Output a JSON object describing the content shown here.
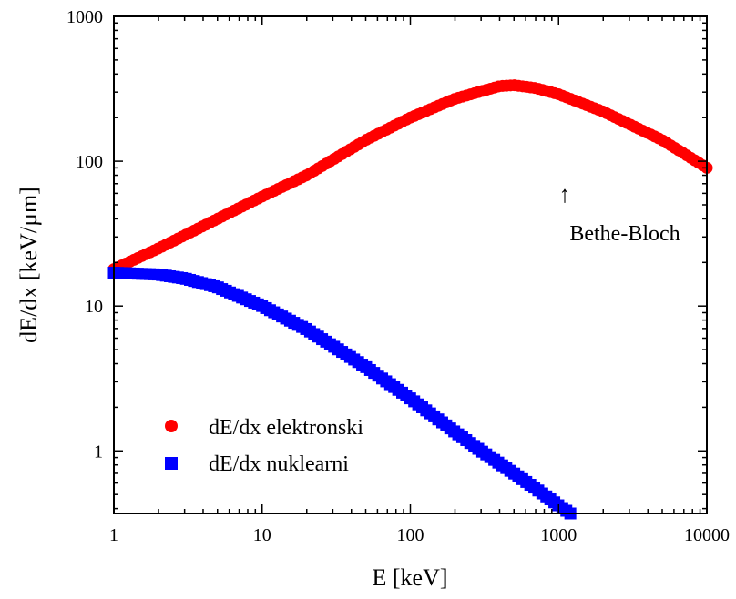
{
  "chart_data": {
    "type": "scatter",
    "xscale": "log",
    "yscale": "log",
    "xlim": [
      1,
      10000
    ],
    "ylim": [
      0.37,
      1000
    ],
    "xlabel": "E [keV]",
    "ylabel": "dE/dx [keV/µm]",
    "xticks": [
      {
        "value": 1,
        "label": "1"
      },
      {
        "value": 10,
        "label": "10"
      },
      {
        "value": 100,
        "label": "100"
      },
      {
        "value": 1000,
        "label": "1000"
      },
      {
        "value": 10000,
        "label": "10000"
      }
    ],
    "yticks": [
      {
        "value": 1,
        "label": "1"
      },
      {
        "value": 10,
        "label": "10"
      },
      {
        "value": 100,
        "label": "100"
      },
      {
        "value": 1000,
        "label": "1000"
      }
    ],
    "grid": false,
    "legend_position": "bottom-left",
    "annotation": {
      "text": "Bethe-Bloch",
      "arrow": "↑",
      "x": 1100,
      "y": 70
    },
    "series": [
      {
        "name": "dE/dx elektronski",
        "marker": "circle",
        "color": "#ff0000",
        "x": [
          1,
          2,
          5,
          10,
          20,
          50,
          100,
          200,
          400,
          500,
          700,
          1000,
          2000,
          5000,
          10000
        ],
        "y": [
          18,
          25,
          40,
          57,
          80,
          140,
          200,
          270,
          330,
          335,
          320,
          290,
          220,
          140,
          90
        ]
      },
      {
        "name": "dE/dx nuklearni",
        "marker": "square",
        "color": "#0000ff",
        "x": [
          1,
          2,
          3,
          5,
          10,
          20,
          30,
          50,
          100,
          200,
          300,
          500,
          700,
          1000,
          1200
        ],
        "y": [
          17,
          16.5,
          15.5,
          13.5,
          10,
          6.9,
          5.3,
          3.8,
          2.3,
          1.35,
          1.0,
          0.7,
          0.55,
          0.42,
          0.37
        ]
      }
    ]
  }
}
